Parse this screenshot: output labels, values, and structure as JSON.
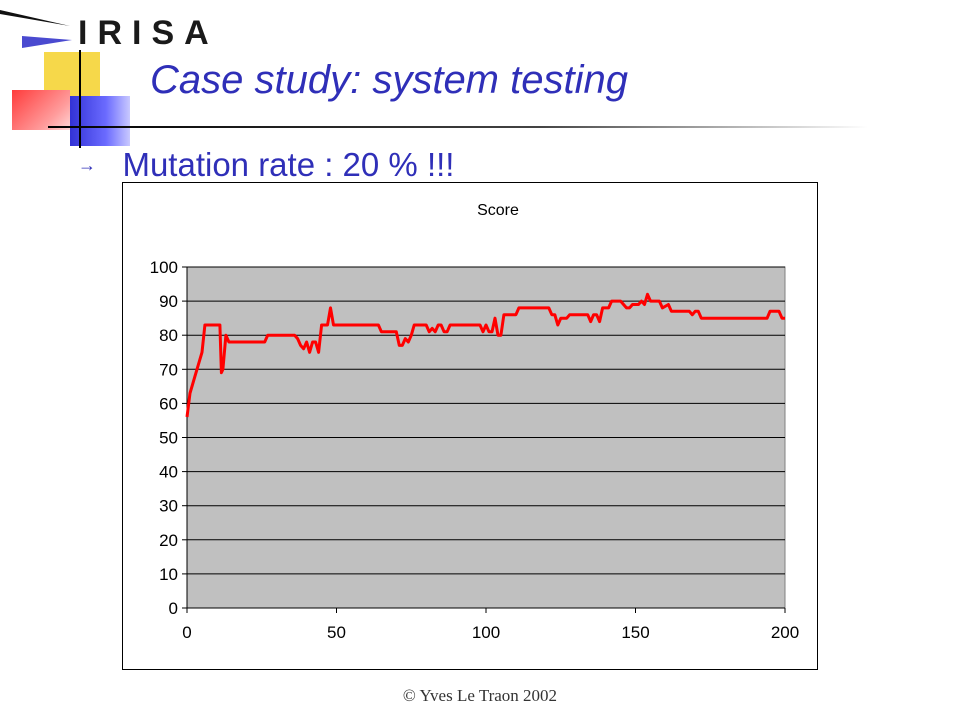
{
  "header": {
    "logo_text": "IRISA",
    "title": "Case study: system testing"
  },
  "bullet": {
    "icon": "arrow-right-icon",
    "text": "Mutation rate : 20 % !!!"
  },
  "footer": {
    "text": "© Yves Le Traon 2002"
  },
  "colors": {
    "title": "#2f2fb8",
    "plot_area": "#c0c0c0",
    "series": "#ff0000"
  },
  "chart_data": {
    "type": "line",
    "title": "Score",
    "xlabel": "",
    "ylabel": "",
    "xlim": [
      0,
      200
    ],
    "ylim": [
      0,
      100
    ],
    "xticks": [
      0,
      50,
      100,
      150,
      200
    ],
    "yticks": [
      0,
      10,
      20,
      30,
      40,
      50,
      60,
      70,
      80,
      90,
      100
    ],
    "grid": "horizontal",
    "legend": "none",
    "series": [
      {
        "name": "",
        "color": "#ff0000",
        "points": [
          [
            0,
            56
          ],
          [
            1,
            63
          ],
          [
            2,
            66
          ],
          [
            3,
            69
          ],
          [
            4,
            72
          ],
          [
            5,
            75
          ],
          [
            6,
            83
          ],
          [
            7,
            83
          ],
          [
            8,
            83
          ],
          [
            9,
            83
          ],
          [
            10,
            83
          ],
          [
            11,
            83
          ],
          [
            11.5,
            69
          ],
          [
            12,
            70
          ],
          [
            13,
            80
          ],
          [
            14,
            78
          ],
          [
            16,
            78
          ],
          [
            18,
            78
          ],
          [
            20,
            78
          ],
          [
            22,
            78
          ],
          [
            24,
            78
          ],
          [
            26,
            78
          ],
          [
            27,
            80
          ],
          [
            30,
            80
          ],
          [
            33,
            80
          ],
          [
            36,
            80
          ],
          [
            37,
            79
          ],
          [
            38,
            77
          ],
          [
            39,
            76
          ],
          [
            40,
            78
          ],
          [
            41,
            75
          ],
          [
            42,
            78
          ],
          [
            43,
            78
          ],
          [
            44,
            75
          ],
          [
            45,
            83
          ],
          [
            46,
            83
          ],
          [
            47,
            83
          ],
          [
            48,
            88
          ],
          [
            49,
            83
          ],
          [
            52,
            83
          ],
          [
            55,
            83
          ],
          [
            58,
            83
          ],
          [
            61,
            83
          ],
          [
            64,
            83
          ],
          [
            65,
            81
          ],
          [
            68,
            81
          ],
          [
            70,
            81
          ],
          [
            71,
            77
          ],
          [
            72,
            77
          ],
          [
            73,
            79
          ],
          [
            74,
            78
          ],
          [
            75,
            80
          ],
          [
            76,
            83
          ],
          [
            78,
            83
          ],
          [
            80,
            83
          ],
          [
            81,
            81
          ],
          [
            82,
            82
          ],
          [
            83,
            81
          ],
          [
            84,
            83
          ],
          [
            85,
            83
          ],
          [
            86,
            81
          ],
          [
            87,
            81
          ],
          [
            88,
            83
          ],
          [
            90,
            83
          ],
          [
            93,
            83
          ],
          [
            96,
            83
          ],
          [
            98,
            83
          ],
          [
            99,
            81
          ],
          [
            100,
            83
          ],
          [
            101,
            81
          ],
          [
            102,
            81
          ],
          [
            103,
            85
          ],
          [
            104,
            80
          ],
          [
            105,
            80
          ],
          [
            106,
            86
          ],
          [
            108,
            86
          ],
          [
            110,
            86
          ],
          [
            111,
            88
          ],
          [
            113,
            88
          ],
          [
            116,
            88
          ],
          [
            119,
            88
          ],
          [
            121,
            88
          ],
          [
            122,
            86
          ],
          [
            123,
            86
          ],
          [
            124,
            83
          ],
          [
            125,
            85
          ],
          [
            127,
            85
          ],
          [
            128,
            86
          ],
          [
            131,
            86
          ],
          [
            134,
            86
          ],
          [
            135,
            84
          ],
          [
            136,
            86
          ],
          [
            137,
            86
          ],
          [
            138,
            84
          ],
          [
            139,
            88
          ],
          [
            141,
            88
          ],
          [
            142,
            90
          ],
          [
            145,
            90
          ],
          [
            147,
            88
          ],
          [
            148,
            88
          ],
          [
            149,
            89
          ],
          [
            151,
            89
          ],
          [
            152,
            90
          ],
          [
            153,
            89
          ],
          [
            154,
            92
          ],
          [
            155,
            90
          ],
          [
            157,
            90
          ],
          [
            158,
            90
          ],
          [
            159,
            88
          ],
          [
            161,
            89
          ],
          [
            162,
            87
          ],
          [
            164,
            87
          ],
          [
            166,
            87
          ],
          [
            168,
            87
          ],
          [
            169,
            86
          ],
          [
            170,
            87
          ],
          [
            171,
            87
          ],
          [
            172,
            85
          ],
          [
            175,
            85
          ],
          [
            180,
            85
          ],
          [
            185,
            85
          ],
          [
            190,
            85
          ],
          [
            194,
            85
          ],
          [
            195,
            87
          ],
          [
            198,
            87
          ],
          [
            199,
            85
          ],
          [
            200,
            85
          ]
        ]
      }
    ]
  }
}
